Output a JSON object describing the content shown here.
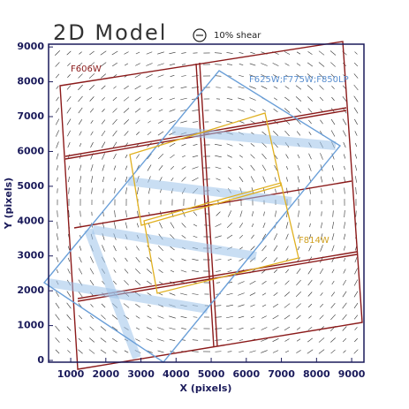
{
  "chart_data": {
    "type": "vector-field",
    "title": "2D Model",
    "legend_label": "10% shear",
    "xlabel": "X (pixels)",
    "ylabel": "Y (pixels)",
    "xlim": [
      370,
      9350
    ],
    "ylim": [
      -50,
      9080
    ],
    "xticks": [
      1000,
      2000,
      3000,
      4000,
      5000,
      6000,
      7000,
      8000,
      9000
    ],
    "yticks": [
      0,
      1000,
      2000,
      3000,
      4000,
      5000,
      6000,
      7000,
      8000,
      9000
    ],
    "annotations": [
      "F606W",
      "F625W;F775W;F850LP",
      "F814W"
    ]
  }
}
